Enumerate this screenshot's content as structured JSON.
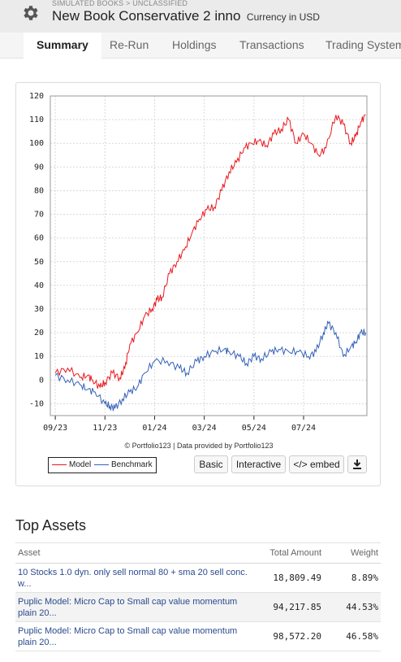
{
  "header": {
    "breadcrumb": "SIMULATED BOOKS > UNCLASSIFIED",
    "title": "New Book Conservative 2 inno",
    "currency": "Currency in USD",
    "icon": "gear-icon"
  },
  "tabs": [
    {
      "label": "Summary",
      "active": true
    },
    {
      "label": "Re-Run",
      "active": false
    },
    {
      "label": "Holdings",
      "active": false
    },
    {
      "label": "Transactions",
      "active": false
    },
    {
      "label": "Trading System",
      "active": false
    }
  ],
  "chart": {
    "copyright": "© Portfolio123 | Data provided by Portfolio123",
    "legend": {
      "model": "Model",
      "benchmark": "Benchmark"
    },
    "buttons": {
      "basic": "Basic",
      "interactive": "Interactive",
      "embed": "</> embed",
      "download_icon": "download-icon"
    }
  },
  "chart_data": {
    "type": "line",
    "xlabel": "",
    "ylabel": "",
    "ylim": [
      -15,
      120
    ],
    "y_ticks": [
      -10,
      0,
      10,
      20,
      30,
      40,
      50,
      60,
      70,
      80,
      90,
      100,
      110,
      120
    ],
    "x_ticks": [
      "09/23",
      "11/23",
      "01/24",
      "03/24",
      "05/24",
      "07/24"
    ],
    "grid": true,
    "legend_position": "bottom-left",
    "colors": {
      "Model": "#e8191f",
      "Benchmark": "#3562b8"
    },
    "series": [
      {
        "name": "Model",
        "x": [
          0,
          0.5,
          1,
          1.3,
          1.5,
          1.8,
          2,
          2.3,
          2.6,
          2.8,
          3,
          3.3,
          3.6,
          3.9,
          4.1,
          4.3,
          4.6,
          4.9,
          5.2,
          5.5,
          5.8,
          6.1,
          6.4,
          6.7,
          7,
          7.3,
          7.6,
          7.9,
          8.2,
          8.5,
          8.8,
          9.1,
          9.4,
          9.7,
          10,
          10.3,
          10.6,
          10.9,
          11.3,
          11.6,
          11.9,
          12.1,
          12.3,
          12.5
        ],
        "y": [
          3,
          5,
          1,
          2,
          0,
          -3,
          -1,
          3,
          1,
          5,
          15,
          20,
          27,
          30,
          34,
          35,
          45,
          50,
          55,
          62,
          68,
          72,
          73,
          80,
          88,
          92,
          98,
          100,
          101,
          99,
          104,
          106,
          110,
          100,
          104,
          100,
          95,
          98,
          112,
          108,
          100,
          103,
          109,
          112
        ]
      },
      {
        "name": "Benchmark",
        "x": [
          0,
          0.5,
          1,
          1.3,
          1.6,
          2,
          2.2,
          2.4,
          2.7,
          3,
          3.3,
          3.6,
          4,
          4.5,
          5,
          5.3,
          5.7,
          6,
          6.4,
          6.8,
          7,
          7.4,
          7.7,
          8,
          8.3,
          8.7,
          9,
          9.4,
          9.8,
          10.2,
          10.5,
          10.8,
          11,
          11.3,
          11.6,
          11.9,
          12.1,
          12.3,
          12.5
        ],
        "y": [
          2,
          0,
          -2,
          -4,
          -5,
          -10,
          -11,
          -12,
          -8,
          -5,
          -3,
          3,
          8,
          8,
          5,
          3,
          8,
          10,
          12,
          13,
          12,
          10,
          7,
          10,
          9,
          12,
          13,
          12,
          12,
          10,
          12,
          20,
          24,
          20,
          10,
          14,
          16,
          20,
          20
        ]
      }
    ]
  },
  "top_assets": {
    "title": "Top Assets",
    "columns": {
      "asset": "Asset",
      "amount": "Total Amount",
      "weight": "Weight"
    },
    "rows": [
      {
        "asset": "10 Stocks 1.0 dyn. only sell normal 80 + sma 20 sell conc. w...",
        "amount": "18,809.49",
        "weight": "8.89%"
      },
      {
        "asset": "Puplic Model: Micro Cap to Small cap value momentum plain 20...",
        "amount": "94,217.85",
        "weight": "44.53%"
      },
      {
        "asset": "Puplic Model: Micro Cap to Small cap value momentum plain 20...",
        "amount": "98,572.20",
        "weight": "46.58%"
      }
    ]
  }
}
